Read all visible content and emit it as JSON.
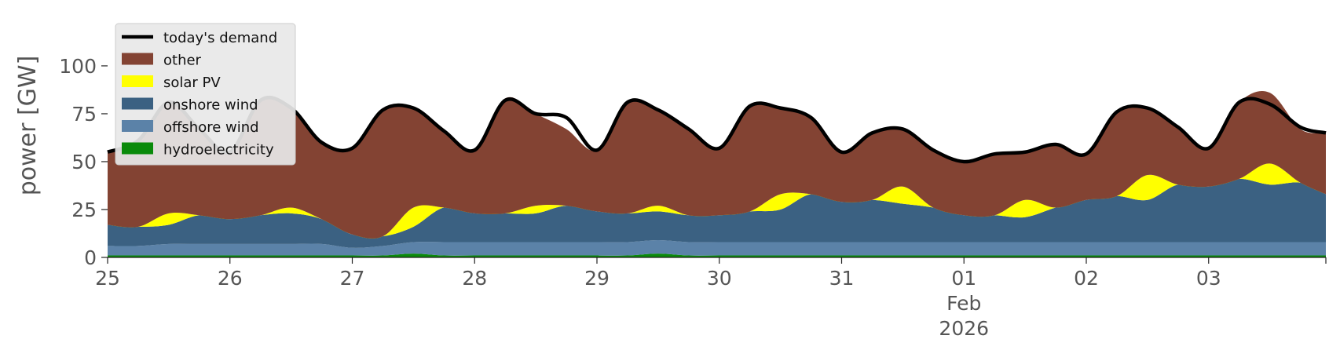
{
  "chart_data": {
    "type": "area",
    "ylabel": "power [GW]",
    "ylim": [
      0,
      118
    ],
    "xlim": [
      "2026-01-25T00:00",
      "2026-02-03T23:00"
    ],
    "yticks": [
      0,
      25,
      50,
      75,
      100
    ],
    "xticks": [
      {
        "date": "2026-01-25",
        "lines": [
          "25"
        ]
      },
      {
        "date": "2026-01-26",
        "lines": [
          "26"
        ]
      },
      {
        "date": "2026-01-27",
        "lines": [
          "27"
        ]
      },
      {
        "date": "2026-01-28",
        "lines": [
          "28"
        ]
      },
      {
        "date": "2026-01-29",
        "lines": [
          "29"
        ]
      },
      {
        "date": "2026-01-30",
        "lines": [
          "30"
        ]
      },
      {
        "date": "2026-01-31",
        "lines": [
          "31"
        ]
      },
      {
        "date": "2026-02-01",
        "lines": [
          "01",
          "Feb",
          "2026"
        ]
      },
      {
        "date": "2026-02-02",
        "lines": [
          "02"
        ]
      },
      {
        "date": "2026-02-03",
        "lines": [
          "03"
        ]
      }
    ],
    "grid": false,
    "stacked": true,
    "legend_placement": "top-left",
    "legend": [
      "today's demand",
      "other",
      "solar PV",
      "onshore wind",
      "offshore wind",
      "hydroelectricity"
    ],
    "x": [
      "2026-01-25T00:00",
      "2026-01-25T06:00",
      "2026-01-25T12:00",
      "2026-01-25T18:00",
      "2026-01-26T00:00",
      "2026-01-26T06:00",
      "2026-01-26T12:00",
      "2026-01-26T18:00",
      "2026-01-27T00:00",
      "2026-01-27T06:00",
      "2026-01-27T12:00",
      "2026-01-27T18:00",
      "2026-01-28T00:00",
      "2026-01-28T06:00",
      "2026-01-28T12:00",
      "2026-01-28T18:00",
      "2026-01-29T00:00",
      "2026-01-29T06:00",
      "2026-01-29T12:00",
      "2026-01-29T18:00",
      "2026-01-30T00:00",
      "2026-01-30T06:00",
      "2026-01-30T12:00",
      "2026-01-30T18:00",
      "2026-01-31T00:00",
      "2026-01-31T06:00",
      "2026-01-31T12:00",
      "2026-01-31T18:00",
      "2026-02-01T00:00",
      "2026-02-01T06:00",
      "2026-02-01T12:00",
      "2026-02-01T18:00",
      "2026-02-02T00:00",
      "2026-02-02T06:00",
      "2026-02-02T12:00",
      "2026-02-02T18:00",
      "2026-02-03T00:00",
      "2026-02-03T06:00",
      "2026-02-03T12:00",
      "2026-02-03T18:00",
      "2026-02-03T23:00"
    ],
    "series": [
      {
        "name": "hydroelectricity",
        "color": "#0a8a0a",
        "values": [
          1,
          1,
          1,
          1,
          1,
          1,
          1,
          1,
          1,
          1,
          2,
          1,
          1,
          1,
          1,
          1,
          1,
          1,
          2,
          1,
          1,
          1,
          1,
          1,
          1,
          1,
          1,
          1,
          1,
          1,
          1,
          1,
          1,
          1,
          1,
          1,
          1,
          1,
          1,
          1,
          1
        ]
      },
      {
        "name": "offshore wind",
        "color": "#5b82a8",
        "values": [
          5,
          5,
          6,
          6,
          6,
          6,
          6,
          6,
          4,
          5,
          6,
          7,
          7,
          7,
          7,
          7,
          7,
          7,
          7,
          7,
          7,
          7,
          7,
          7,
          7,
          7,
          7,
          7,
          7,
          7,
          7,
          7,
          7,
          7,
          7,
          7,
          7,
          7,
          7,
          7,
          7
        ]
      },
      {
        "name": "onshore wind",
        "color": "#3b6182",
        "values": [
          11,
          10,
          10,
          15,
          13,
          15,
          16,
          13,
          7,
          5,
          8,
          18,
          15,
          15,
          15,
          19,
          16,
          15,
          15,
          14,
          14,
          16,
          17,
          25,
          21,
          22,
          20,
          18,
          14,
          14,
          13,
          18,
          22,
          24,
          22,
          30,
          29,
          33,
          30,
          31,
          25
        ]
      },
      {
        "name": "solar PV",
        "color": "#ffff00",
        "values": [
          0,
          0,
          6,
          0,
          0,
          0,
          3,
          0,
          0,
          0,
          10,
          0,
          0,
          0,
          4,
          0,
          0,
          0,
          3,
          0,
          0,
          0,
          8,
          0,
          0,
          0,
          9,
          0,
          0,
          0,
          9,
          0,
          0,
          0,
          13,
          0,
          0,
          0,
          11,
          0,
          0
        ]
      },
      {
        "name": "other",
        "color": "#834333",
        "values": [
          38,
          45,
          58,
          45,
          35,
          60,
          52,
          40,
          45,
          65,
          52,
          40,
          33,
          60,
          48,
          40,
          32,
          58,
          50,
          45,
          35,
          55,
          45,
          40,
          26,
          35,
          30,
          30,
          28,
          32,
          25,
          33,
          24,
          44,
          35,
          30,
          20,
          40,
          37,
          28,
          32
        ]
      },
      {
        "name": "today's demand",
        "color": "#000000",
        "type": "line",
        "values": [
          55,
          61,
          81,
          67,
          55,
          82,
          78,
          60,
          57,
          77,
          78,
          66,
          56,
          82,
          75,
          73,
          56,
          81,
          77,
          67,
          57,
          79,
          78,
          73,
          55,
          65,
          67,
          56,
          50,
          54,
          55,
          59,
          54,
          76,
          78,
          68,
          57,
          81,
          80,
          68,
          65
        ]
      }
    ]
  }
}
